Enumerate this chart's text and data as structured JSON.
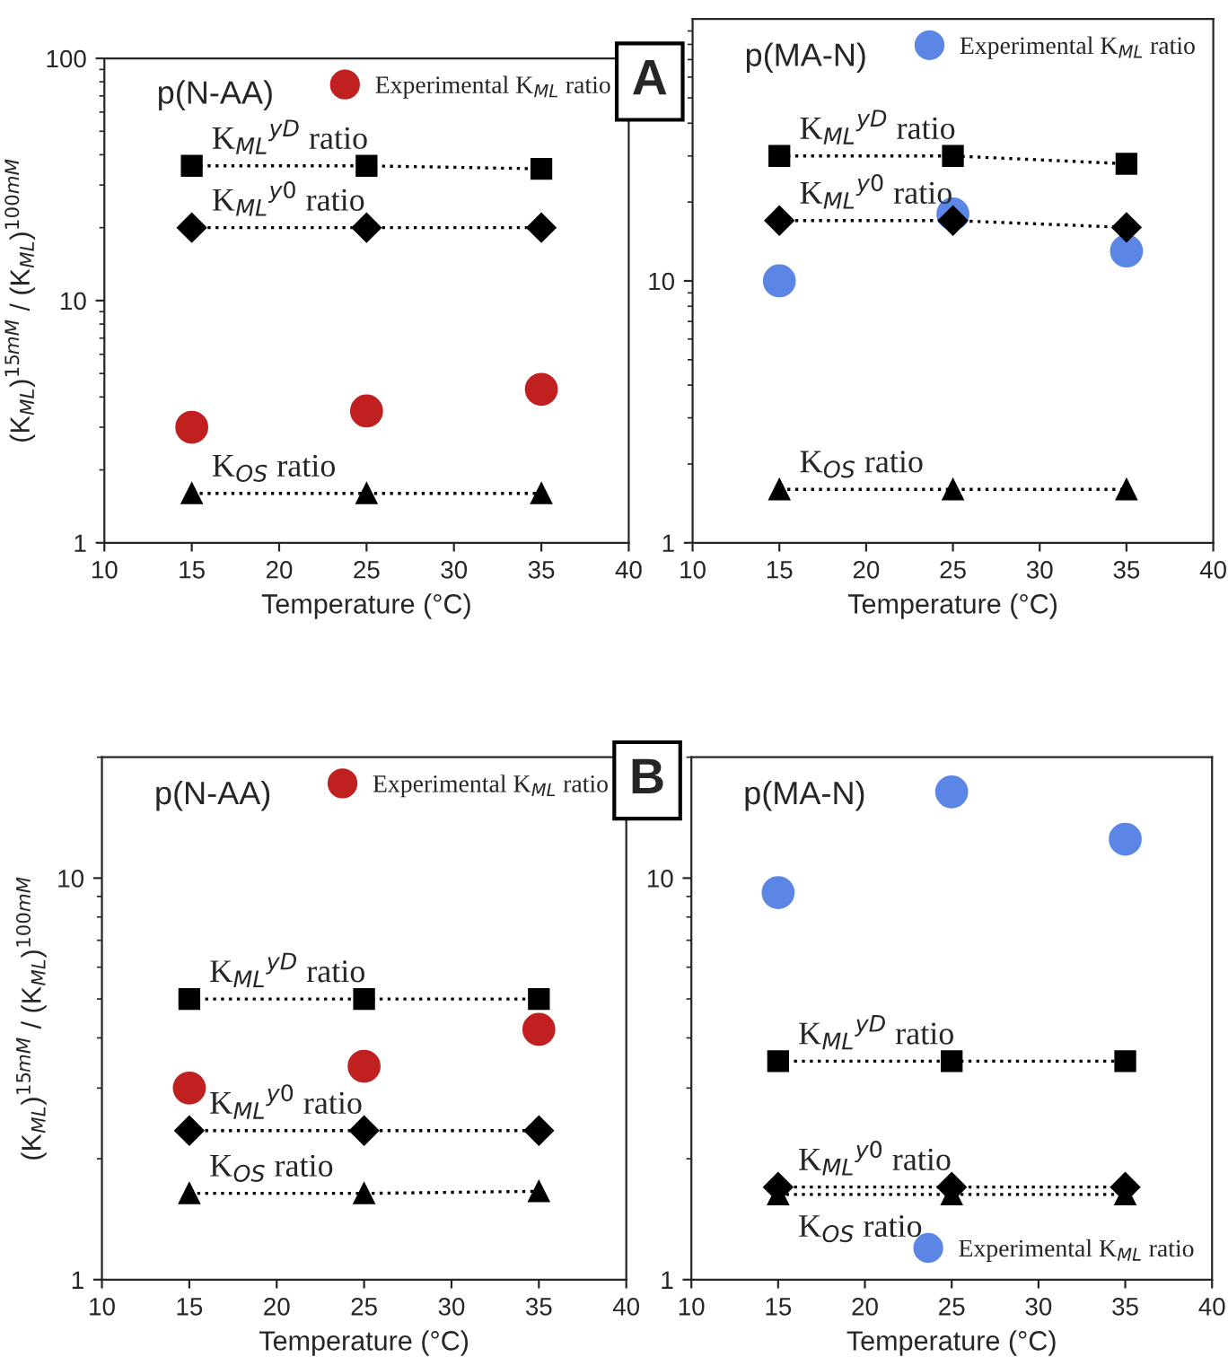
{
  "chart_data": [
    {
      "type": "line",
      "log": "y",
      "xlabel": "Temperature (°C)",
      "ylabel": "(K$_{ML}$)$^{15mM}$ / (K$_{ML}$)$^{100mM}$",
      "x": [
        15,
        25,
        35
      ],
      "xlim": [
        10,
        40
      ],
      "xticks": [
        10,
        15,
        20,
        25,
        30,
        35,
        40
      ],
      "ylim": [
        1,
        100
      ],
      "yticks": [
        1,
        10,
        100
      ],
      "legend": "top right",
      "annotations": [
        "p(N-AA)",
        "A"
      ],
      "series": [
        {
          "name": "Experimental K$_{ML}$ ratio",
          "type": "scatter",
          "marker": "circle",
          "color": "#c0201f",
          "values": [
            3.0,
            3.5,
            4.3
          ]
        },
        {
          "name": "K$_{ML}$$^{yD}$ ratio",
          "marker": "square",
          "line_style": "dotted",
          "color": "#000000",
          "values": [
            36,
            36,
            35
          ]
        },
        {
          "name": "K$_{ML}$$^{y0}$ ratio",
          "marker": "diamond",
          "line_style": "dotted",
          "color": "#000000",
          "values": [
            20,
            20,
            20
          ]
        },
        {
          "name": "K$_{OS}$ ratio",
          "marker": "triangle",
          "line_style": "dotted",
          "color": "#000000",
          "values": [
            1.6,
            1.6,
            1.6
          ]
        }
      ]
    },
    {
      "type": "line",
      "log": "y",
      "xlabel": "Temperature (°C)",
      "x": [
        15,
        25,
        35
      ],
      "xlim": [
        10,
        40
      ],
      "xticks": [
        10,
        15,
        20,
        25,
        30,
        35,
        40
      ],
      "ylim": [
        1,
        100
      ],
      "yticks": [
        1,
        10
      ],
      "legend": "top right",
      "annotations": [
        "p(MA-N)"
      ],
      "series": [
        {
          "name": "Experimental K$_{ML}$ ratio",
          "type": "scatter",
          "marker": "circle",
          "color": "#5b86e5",
          "values": [
            10,
            18,
            13
          ]
        },
        {
          "name": "K$_{ML}$$^{yD}$ ratio",
          "marker": "square",
          "line_style": "dotted",
          "color": "#000000",
          "values": [
            30,
            30,
            28
          ]
        },
        {
          "name": "K$_{ML}$$^{y0}$ ratio",
          "marker": "diamond",
          "line_style": "dotted",
          "color": "#000000",
          "values": [
            17,
            17,
            16
          ]
        },
        {
          "name": "K$_{OS}$ ratio",
          "marker": "triangle",
          "line_style": "dotted",
          "color": "#000000",
          "values": [
            1.6,
            1.6,
            1.6
          ]
        }
      ]
    },
    {
      "type": "line",
      "log": "y",
      "xlabel": "Temperature (°C)",
      "ylabel": "(K$_{ML}$)$^{15mM}$ / (K$_{ML}$)$^{100mM}$",
      "x": [
        15,
        25,
        35
      ],
      "xlim": [
        10,
        40
      ],
      "xticks": [
        10,
        15,
        20,
        25,
        30,
        35,
        40
      ],
      "ylim": [
        1,
        20
      ],
      "yticks": [
        1,
        10
      ],
      "legend": "top right",
      "annotations": [
        "p(N-AA)",
        "B"
      ],
      "series": [
        {
          "name": "Experimental K$_{ML}$ ratio",
          "type": "scatter",
          "marker": "circle",
          "color": "#c0201f",
          "values": [
            3.0,
            3.4,
            4.2
          ]
        },
        {
          "name": "K$_{ML}$$^{yD}$ ratio",
          "marker": "square",
          "line_style": "dotted",
          "color": "#000000",
          "values": [
            5.0,
            5.0,
            5.0
          ]
        },
        {
          "name": "K$_{ML}$$^{y0}$ ratio",
          "marker": "diamond",
          "line_style": "dotted",
          "color": "#000000",
          "values": [
            2.35,
            2.35,
            2.35
          ]
        },
        {
          "name": "K$_{OS}$ ratio",
          "marker": "triangle",
          "line_style": "dotted",
          "color": "#000000",
          "values": [
            1.64,
            1.64,
            1.66
          ]
        }
      ]
    },
    {
      "type": "line",
      "log": "y",
      "xlabel": "Temperature (°C)",
      "x": [
        15,
        25,
        35
      ],
      "xlim": [
        10,
        40
      ],
      "xticks": [
        10,
        15,
        20,
        25,
        30,
        35,
        40
      ],
      "ylim": [
        1,
        20
      ],
      "yticks": [
        1,
        10
      ],
      "legend": "bottom right",
      "annotations": [
        "p(MA-N)"
      ],
      "series": [
        {
          "name": "Experimental K$_{ML}$ ratio",
          "type": "scatter",
          "marker": "circle",
          "color": "#5b86e5",
          "values": [
            9.2,
            16.4,
            12.5
          ]
        },
        {
          "name": "K$_{ML}$$^{yD}$ ratio",
          "marker": "square",
          "line_style": "dotted",
          "color": "#000000",
          "values": [
            3.5,
            3.5,
            3.5
          ]
        },
        {
          "name": "K$_{ML}$$^{y0}$ ratio",
          "marker": "diamond",
          "line_style": "dotted",
          "color": "#000000",
          "values": [
            1.7,
            1.7,
            1.7
          ]
        },
        {
          "name": "K$_{OS}$ ratio",
          "marker": "triangle",
          "line_style": "dotted",
          "color": "#000000",
          "values": [
            1.63,
            1.63,
            1.63
          ]
        }
      ]
    }
  ]
}
